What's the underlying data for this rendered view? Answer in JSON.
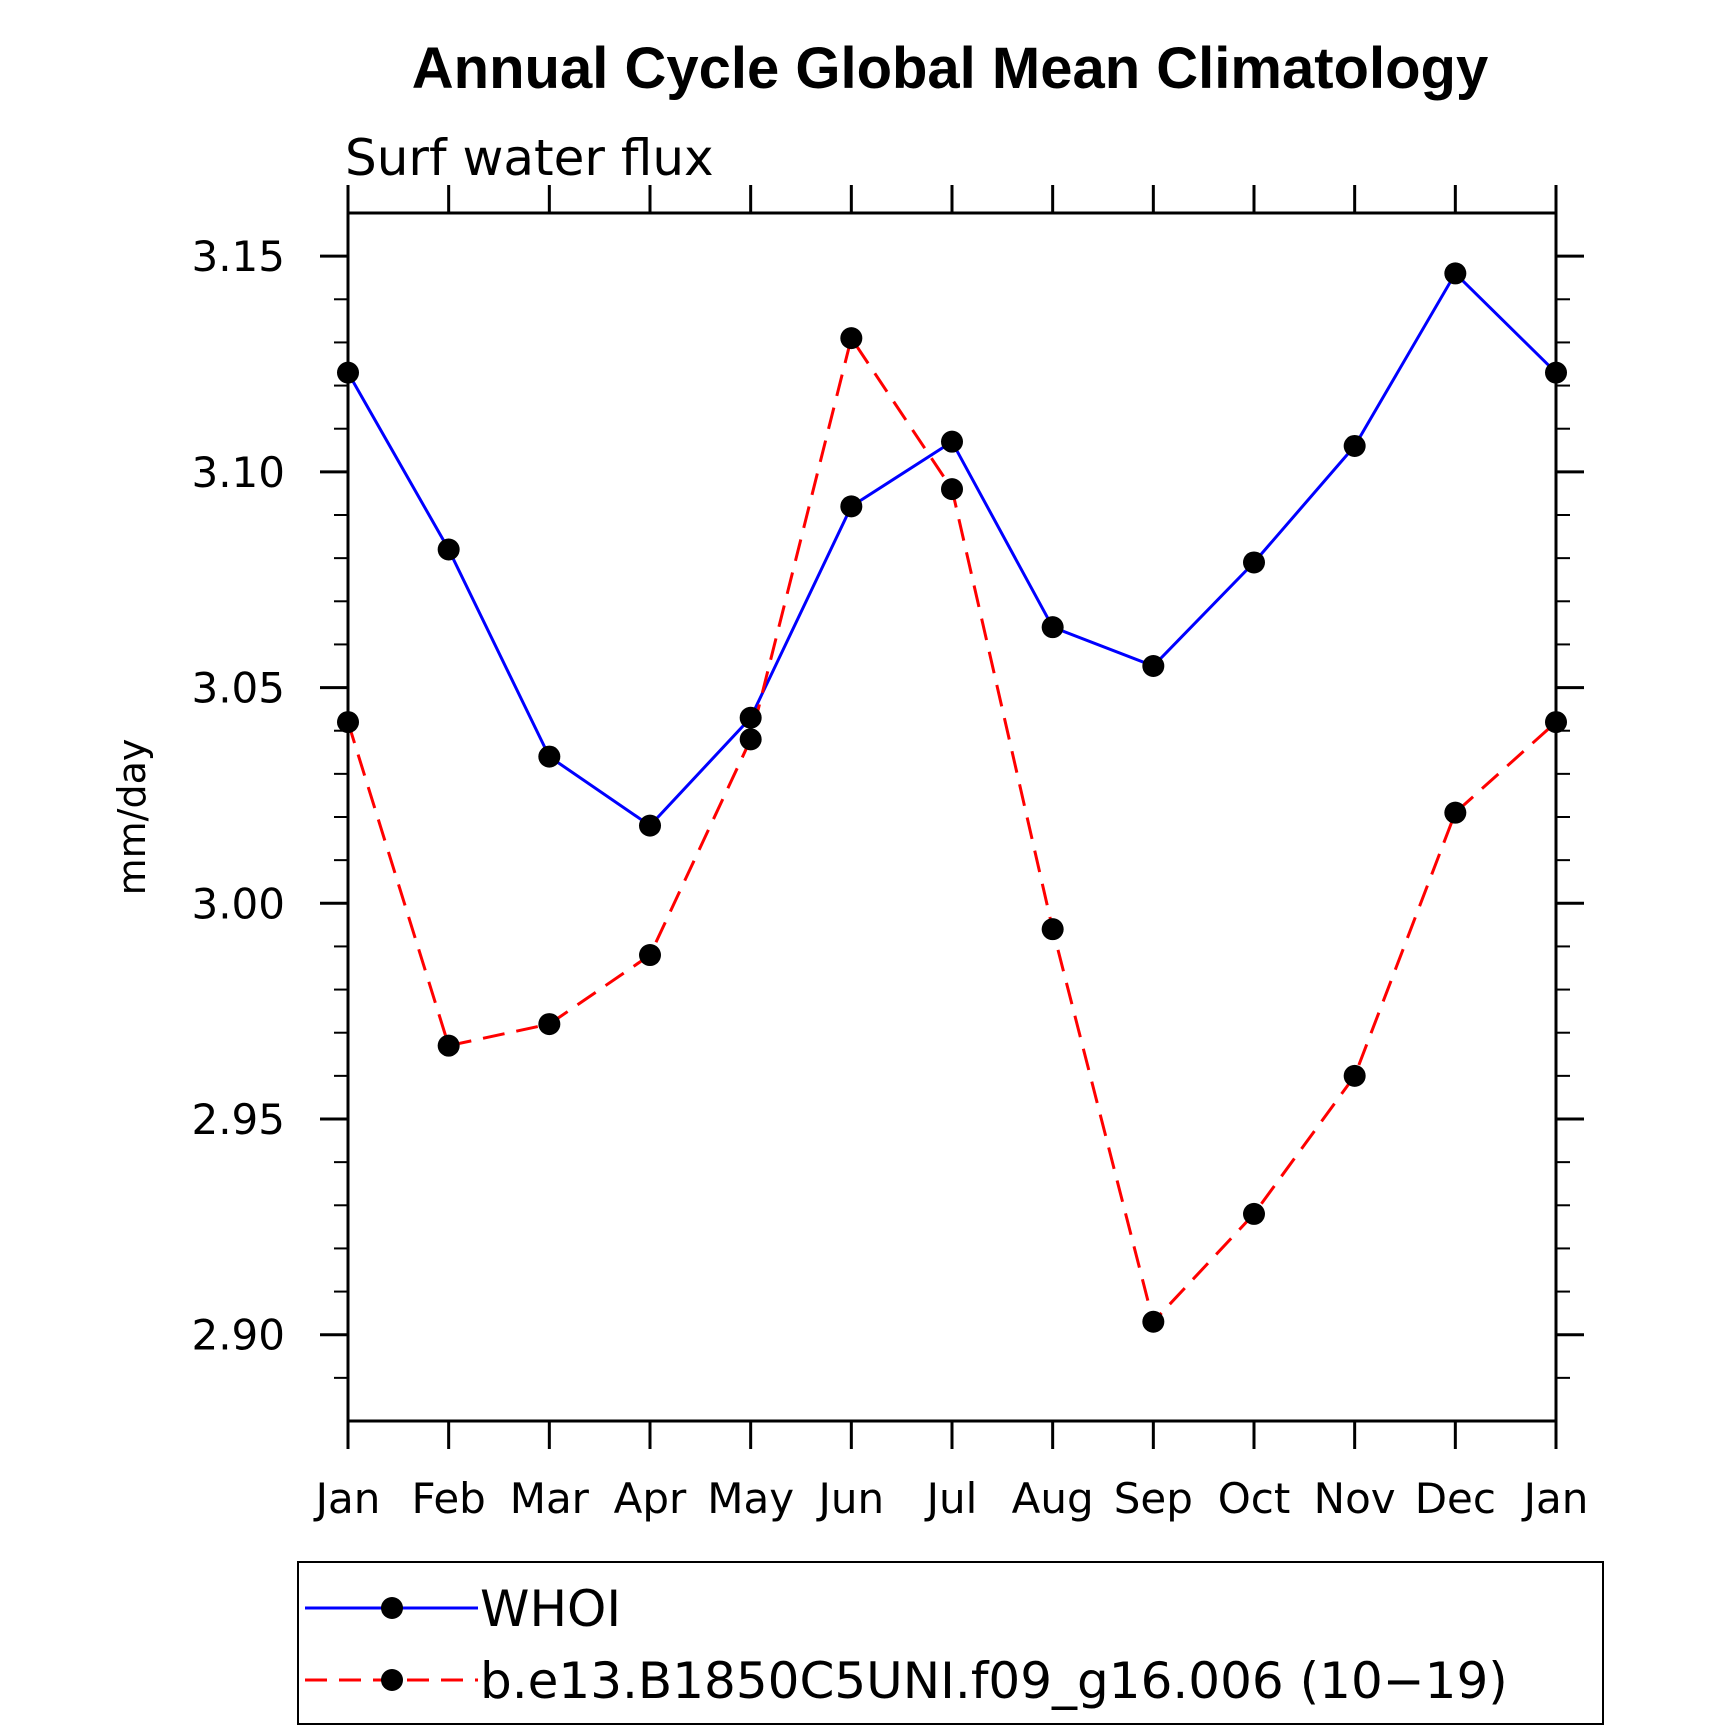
{
  "chart_data": {
    "type": "line",
    "title": "Annual Cycle Global Mean Climatology",
    "subtitle": "Surf water flux",
    "xlabel": "",
    "ylabel": "mm/day",
    "categories": [
      "Jan",
      "Feb",
      "Mar",
      "Apr",
      "May",
      "Jun",
      "Jul",
      "Aug",
      "Sep",
      "Oct",
      "Nov",
      "Dec",
      "Jan"
    ],
    "ylim": [
      2.88,
      3.16
    ],
    "yticks": [
      "2.90",
      "2.95",
      "3.00",
      "3.05",
      "3.10",
      "3.15"
    ],
    "grid": false,
    "legend_position": "bottom",
    "series": [
      {
        "name": "WHOI",
        "color": "#0000ff",
        "dash": "solid",
        "marker": "filled-circle",
        "values": [
          3.123,
          3.082,
          3.034,
          3.018,
          3.043,
          3.092,
          3.107,
          3.064,
          3.055,
          3.079,
          3.106,
          3.146,
          3.123
        ]
      },
      {
        "name": "b.e13.B1850C5UNI.f09_g16.006 (10−19)",
        "color": "#ff0000",
        "dash": "dashed",
        "marker": "filled-circle",
        "values": [
          3.042,
          2.967,
          2.972,
          2.988,
          3.038,
          3.131,
          3.096,
          2.994,
          2.903,
          2.928,
          2.96,
          3.021,
          3.042
        ]
      }
    ]
  }
}
